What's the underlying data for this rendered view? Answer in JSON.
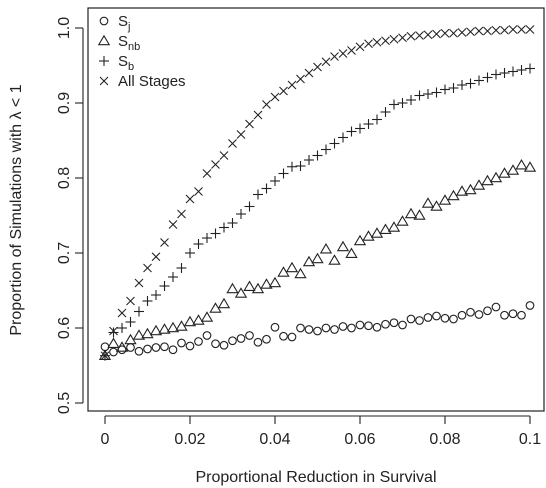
{
  "chart_data": {
    "type": "scatter",
    "xlabel": "Proportional Reduction in Survival",
    "ylabel": "Proportion of Simulations with λ < 1",
    "xlim": [
      0,
      0.1
    ],
    "ylim": [
      0.5,
      1.0
    ],
    "x_ticks": [
      "0",
      "0.02",
      "0.04",
      "0.06",
      "0.08",
      "0.1"
    ],
    "y_ticks": [
      "0.5",
      "0.6",
      "0.7",
      "0.8",
      "0.9",
      "1.0"
    ],
    "legend_position": "top-left",
    "series": [
      {
        "name": "S",
        "name_sub": "j",
        "marker": "circle",
        "values": [
          0.575,
          0.568,
          0.571,
          0.574,
          0.569,
          0.572,
          0.574,
          0.575,
          0.571,
          0.58,
          0.576,
          0.582,
          0.59,
          0.579,
          0.577,
          0.583,
          0.586,
          0.59,
          0.581,
          0.585,
          0.601,
          0.589,
          0.588,
          0.6,
          0.598,
          0.596,
          0.6,
          0.598,
          0.602,
          0.6,
          0.604,
          0.603,
          0.601,
          0.605,
          0.607,
          0.604,
          0.612,
          0.61,
          0.614,
          0.616,
          0.613,
          0.612,
          0.617,
          0.621,
          0.618,
          0.623,
          0.628,
          0.617,
          0.619,
          0.617,
          0.63
        ]
      },
      {
        "name": "S",
        "name_sub": "nb",
        "marker": "triangle",
        "values": [
          0.563,
          0.579,
          0.574,
          0.584,
          0.59,
          0.592,
          0.596,
          0.598,
          0.6,
          0.602,
          0.608,
          0.61,
          0.614,
          0.626,
          0.632,
          0.652,
          0.646,
          0.655,
          0.652,
          0.658,
          0.66,
          0.674,
          0.68,
          0.672,
          0.688,
          0.692,
          0.705,
          0.69,
          0.708,
          0.699,
          0.716,
          0.722,
          0.726,
          0.731,
          0.734,
          0.742,
          0.752,
          0.75,
          0.766,
          0.762,
          0.77,
          0.776,
          0.782,
          0.784,
          0.79,
          0.796,
          0.8,
          0.806,
          0.81,
          0.817,
          0.814
        ]
      },
      {
        "name": "S",
        "name_sub": "b",
        "marker": "plus",
        "values": [
          0.563,
          0.594,
          0.6,
          0.608,
          0.622,
          0.636,
          0.644,
          0.656,
          0.668,
          0.68,
          0.7,
          0.712,
          0.72,
          0.726,
          0.734,
          0.74,
          0.752,
          0.762,
          0.778,
          0.786,
          0.796,
          0.806,
          0.815,
          0.816,
          0.824,
          0.83,
          0.838,
          0.846,
          0.854,
          0.862,
          0.866,
          0.872,
          0.878,
          0.888,
          0.898,
          0.9,
          0.904,
          0.91,
          0.912,
          0.914,
          0.918,
          0.92,
          0.924,
          0.926,
          0.93,
          0.934,
          0.938,
          0.94,
          0.942,
          0.944,
          0.946
        ]
      },
      {
        "name": "All Stages",
        "name_sub": "",
        "marker": "x",
        "values": [
          0.563,
          0.596,
          0.62,
          0.636,
          0.66,
          0.68,
          0.695,
          0.714,
          0.738,
          0.752,
          0.772,
          0.782,
          0.806,
          0.818,
          0.83,
          0.846,
          0.858,
          0.872,
          0.884,
          0.898,
          0.908,
          0.916,
          0.924,
          0.932,
          0.94,
          0.948,
          0.955,
          0.962,
          0.966,
          0.97,
          0.975,
          0.979,
          0.981,
          0.983,
          0.985,
          0.987,
          0.989,
          0.99,
          0.991,
          0.992,
          0.993,
          0.993,
          0.994,
          0.995,
          0.996,
          0.996,
          0.997,
          0.997,
          0.998,
          0.998,
          0.998
        ]
      }
    ]
  }
}
